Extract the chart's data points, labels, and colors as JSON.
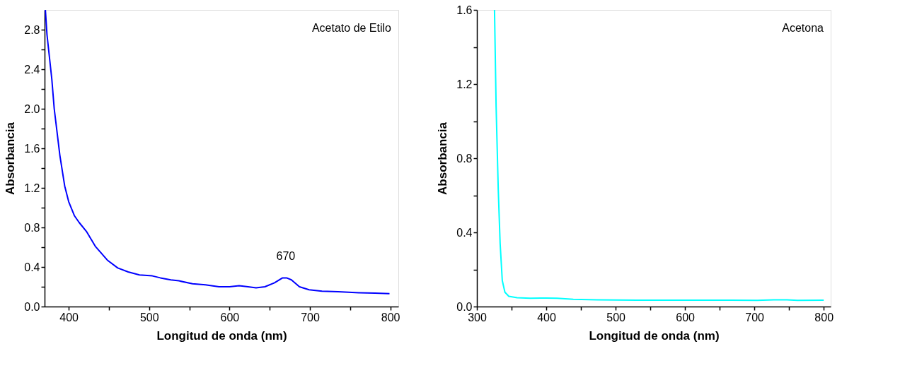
{
  "chart_data": [
    {
      "type": "line",
      "xlabel": "Longitud de onda (nm)",
      "ylabel": "Absorbancia",
      "xlim": [
        370,
        810
      ],
      "ylim": [
        0,
        3.0
      ],
      "xticks": [
        400,
        {
          "value": 450,
          "label": null
        },
        500,
        {
          "value": 550,
          "label": null
        },
        600,
        {
          "value": 650,
          "label": null
        },
        700,
        {
          "value": 750,
          "label": null
        },
        800
      ],
      "yticks": [
        {
          "value": 0,
          "label": "0.0"
        },
        {
          "value": 0.2,
          "label": null
        },
        0.4,
        {
          "value": 0.6,
          "label": null
        },
        0.8,
        {
          "value": 1.0,
          "label": null
        },
        1.2,
        {
          "value": 1.4,
          "label": null
        },
        1.6,
        {
          "value": 1.8,
          "label": null
        },
        {
          "value": 2.0,
          "label": "2.0"
        },
        {
          "value": 2.2,
          "label": null
        },
        2.4,
        {
          "value": 2.6,
          "label": null
        },
        2.8
      ],
      "grid": false,
      "legend": false,
      "line_style": "solid",
      "marker": "none",
      "annotations": [
        "Acetato de Etilo",
        {
          "text": "670",
          "x": 670,
          "y": 0.29
        }
      ],
      "series": [
        {
          "color": "#0000ff",
          "x": [
            371,
            373,
            379,
            382,
            389,
            395,
            400,
            407,
            413,
            422,
            433,
            448,
            461,
            474,
            488,
            504,
            514,
            527,
            537,
            554,
            570,
            587,
            600,
            612,
            623,
            633,
            644,
            656,
            666,
            671,
            677,
            687,
            699,
            715,
            735,
            761,
            781,
            799
          ],
          "values": [
            3.0,
            2.75,
            2.3,
            2.0,
            1.53,
            1.22,
            1.06,
            0.92,
            0.85,
            0.76,
            0.61,
            0.47,
            0.39,
            0.35,
            0.32,
            0.31,
            0.29,
            0.27,
            0.26,
            0.23,
            0.22,
            0.2,
            0.2,
            0.21,
            0.2,
            0.19,
            0.2,
            0.24,
            0.29,
            0.29,
            0.27,
            0.2,
            0.17,
            0.155,
            0.15,
            0.14,
            0.135,
            0.13
          ]
        }
      ]
    },
    {
      "type": "line",
      "xlabel": "Longitud de onda (nm)",
      "ylabel": "Absorbancia",
      "xlim": [
        300,
        810
      ],
      "ylim": [
        0,
        1.6
      ],
      "xticks": [
        300,
        {
          "value": 350,
          "label": null
        },
        400,
        {
          "value": 450,
          "label": null
        },
        500,
        {
          "value": 550,
          "label": null
        },
        600,
        {
          "value": 650,
          "label": null
        },
        700,
        {
          "value": 750,
          "label": null
        },
        800
      ],
      "yticks": [
        {
          "value": 0,
          "label": "0.0"
        },
        {
          "value": 0.2,
          "label": null
        },
        0.4,
        {
          "value": 0.6,
          "label": null
        },
        0.8,
        {
          "value": 1.0,
          "label": null
        },
        1.2,
        {
          "value": 1.4,
          "label": null
        },
        1.6
      ],
      "grid": false,
      "legend": false,
      "line_style": "solid",
      "marker": "none",
      "annotations": [
        "Acetona"
      ],
      "series": [
        {
          "color": "#00ffff",
          "x": [
            325.4,
            327.7,
            330.8,
            333.5,
            336.6,
            340.4,
            346,
            358,
            377,
            400,
            415.6,
            439,
            473,
            531,
            608,
            666,
            704,
            728,
            747,
            762,
            800
          ],
          "values": [
            1.6,
            1.08,
            0.63,
            0.34,
            0.14,
            0.077,
            0.055,
            0.048,
            0.045,
            0.046,
            0.045,
            0.039,
            0.036,
            0.034,
            0.034,
            0.034,
            0.033,
            0.036,
            0.036,
            0.033,
            0.034
          ]
        }
      ]
    }
  ]
}
